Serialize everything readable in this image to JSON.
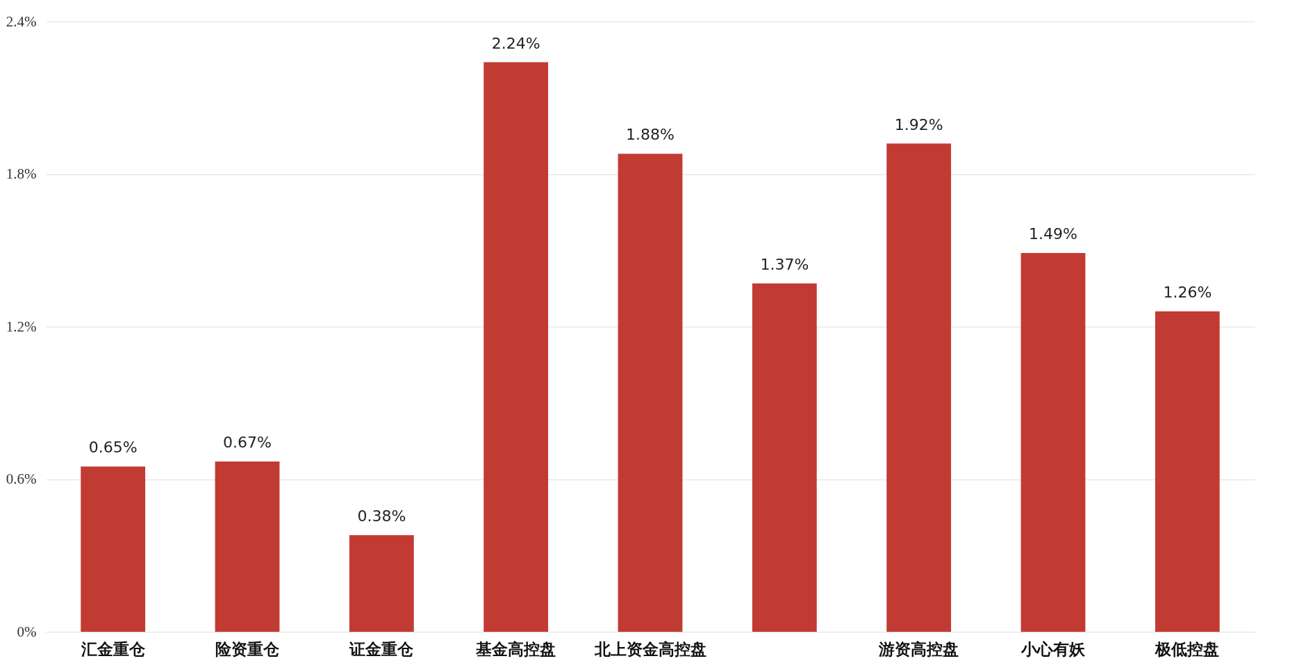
{
  "chart_data": {
    "type": "bar",
    "categories": [
      "汇金重仓",
      "险资重仓",
      "证金重仓",
      "基金高控盘",
      "北上资金高控盘",
      null,
      "游资高控盘",
      "小心有妖",
      "极低控盘"
    ],
    "values": [
      0.65,
      0.67,
      0.38,
      2.24,
      1.88,
      1.37,
      1.92,
      1.49,
      1.26
    ],
    "value_labels": [
      "0.65%",
      "0.67%",
      "0.38%",
      "2.24%",
      "1.88%",
      "1.37%",
      "1.92%",
      "1.49%",
      "1.26%"
    ],
    "color": "#c23b33",
    "ylim": [
      0,
      2.4
    ],
    "yticks": [
      {
        "value": 0,
        "label": "0%"
      },
      {
        "value": 0.6,
        "label": "0.6%"
      },
      {
        "value": 1.2,
        "label": "1.2%"
      },
      {
        "value": 1.8,
        "label": "1.8%"
      },
      {
        "value": 2.4,
        "label": "2.4%"
      }
    ],
    "grid": "y"
  }
}
